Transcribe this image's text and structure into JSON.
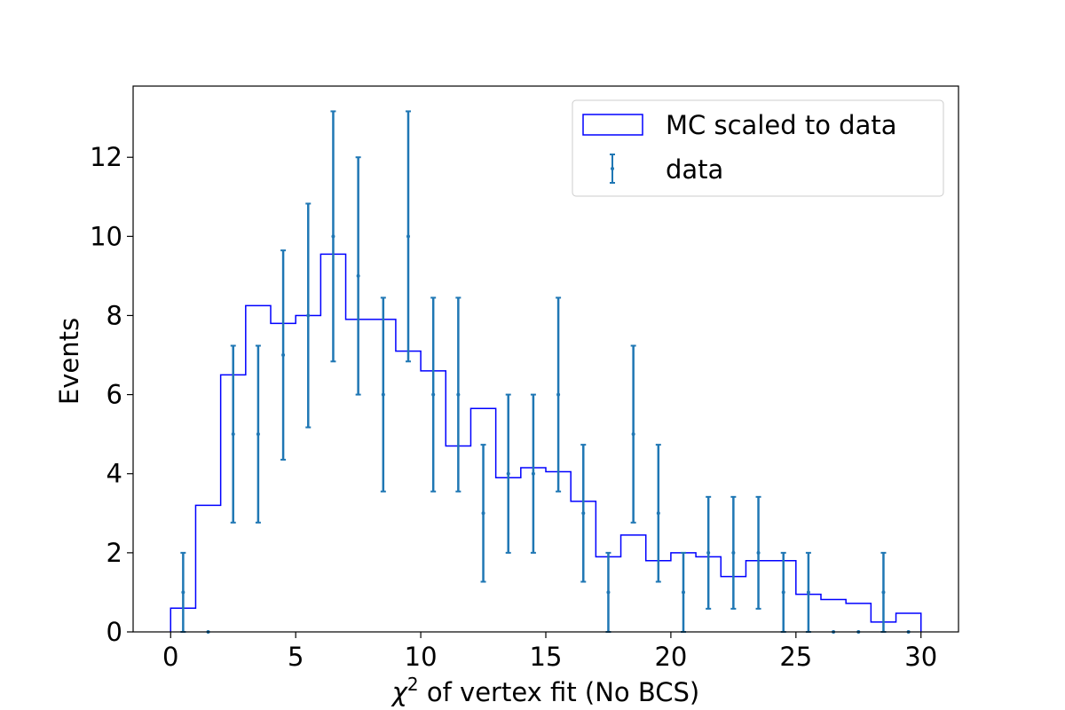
{
  "chart_data": {
    "type": "histogram",
    "title": "",
    "xlabel_symbol": "χ",
    "xlabel_superscript": "2",
    "xlabel_rest": " of vertex fit (No BCS)",
    "ylabel": "Events",
    "xlim": [
      -1.5,
      31.5
    ],
    "ylim": [
      0,
      13.8
    ],
    "xticks": [
      0,
      5,
      10,
      15,
      20,
      25,
      30
    ],
    "yticks": [
      0,
      2,
      4,
      6,
      8,
      10,
      12
    ],
    "grid": false,
    "legend_placement": "top-right",
    "bin_edges": [
      0,
      1,
      2,
      3,
      4,
      5,
      6,
      7,
      8,
      9,
      10,
      11,
      12,
      13,
      14,
      15,
      16,
      17,
      18,
      19,
      20,
      21,
      22,
      23,
      24,
      25,
      26,
      27,
      28,
      29,
      30
    ],
    "series": [
      {
        "name": "MC scaled to data",
        "kind": "step",
        "color": "#0000ff",
        "values": [
          0.6,
          3.2,
          6.5,
          8.25,
          7.8,
          8.0,
          9.55,
          7.9,
          7.9,
          7.1,
          6.6,
          4.7,
          5.65,
          3.9,
          4.15,
          4.05,
          3.3,
          1.9,
          2.45,
          1.8,
          2.0,
          1.9,
          1.4,
          1.8,
          1.8,
          0.95,
          0.82,
          0.72,
          0.25,
          0.47
        ]
      },
      {
        "name": "data",
        "kind": "errorbar",
        "color": "#1f77b4",
        "x": [
          0.5,
          1.5,
          2.5,
          3.5,
          4.5,
          5.5,
          6.5,
          7.5,
          8.5,
          9.5,
          10.5,
          11.5,
          12.5,
          13.5,
          14.5,
          15.5,
          16.5,
          17.5,
          18.5,
          19.5,
          20.5,
          21.5,
          22.5,
          23.5,
          24.5,
          25.5,
          26.5,
          27.5,
          28.5,
          29.5
        ],
        "values": [
          1,
          0,
          5,
          5,
          7,
          8,
          10,
          9,
          6,
          10,
          6,
          6,
          3,
          4,
          4,
          6,
          3,
          1,
          5,
          3,
          1,
          2,
          2,
          2,
          1,
          1,
          0,
          0,
          1,
          0
        ]
      }
    ]
  }
}
